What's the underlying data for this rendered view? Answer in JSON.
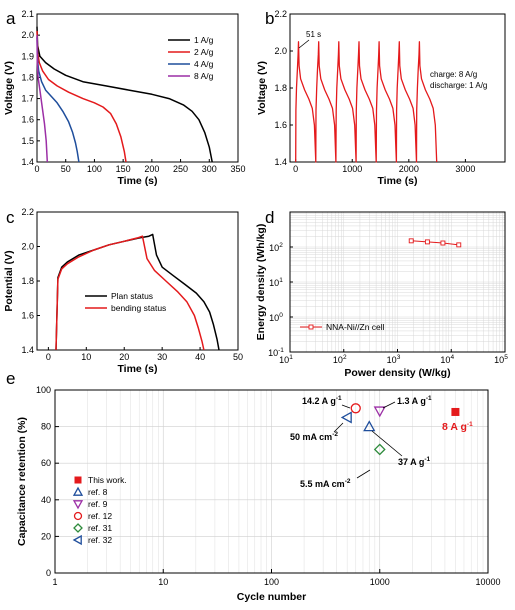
{
  "chart_data": [
    {
      "panel": "a",
      "type": "line",
      "xlabel": "Time (s)",
      "ylabel": "Voltage (V)",
      "xlim": [
        0,
        350
      ],
      "ylim": [
        1.4,
        2.1
      ],
      "xticks": [
        0,
        50,
        100,
        150,
        200,
        250,
        300,
        350
      ],
      "yticks": [
        1.4,
        1.5,
        1.6,
        1.7,
        1.8,
        1.9,
        2.0,
        2.1
      ],
      "legend_position": "top-right",
      "series": [
        {
          "name": "1 A/g",
          "color": "#000000",
          "x": [
            0,
            1,
            5,
            15,
            30,
            50,
            80,
            120,
            160,
            200,
            230,
            255,
            270,
            282,
            292,
            300,
            305
          ],
          "y": [
            2.04,
            1.95,
            1.9,
            1.87,
            1.84,
            1.81,
            1.78,
            1.76,
            1.74,
            1.72,
            1.7,
            1.67,
            1.64,
            1.6,
            1.54,
            1.47,
            1.4
          ]
        },
        {
          "name": "2 A/g",
          "color": "#e41a1c",
          "x": [
            0,
            1,
            4,
            10,
            20,
            35,
            55,
            80,
            100,
            115,
            128,
            138,
            146,
            152,
            155
          ],
          "y": [
            2.02,
            1.92,
            1.87,
            1.83,
            1.79,
            1.76,
            1.73,
            1.7,
            1.68,
            1.66,
            1.63,
            1.58,
            1.52,
            1.45,
            1.4
          ]
        },
        {
          "name": "4 A/g",
          "color": "#1f4e9c",
          "x": [
            0,
            1,
            3,
            8,
            15,
            25,
            35,
            45,
            55,
            62,
            67,
            70,
            73
          ],
          "y": [
            1.99,
            1.88,
            1.83,
            1.78,
            1.74,
            1.71,
            1.68,
            1.64,
            1.59,
            1.54,
            1.49,
            1.45,
            1.4
          ]
        },
        {
          "name": "8 A/g",
          "color": "#9c2fa6",
          "x": [
            0,
            0.5,
            2,
            5,
            9,
            13,
            16,
            18
          ],
          "y": [
            2.0,
            1.87,
            1.8,
            1.74,
            1.66,
            1.58,
            1.5,
            1.4
          ]
        }
      ]
    },
    {
      "panel": "b",
      "type": "line",
      "xlabel": "Time (s)",
      "ylabel": "Voltage (V)",
      "xlim": [
        -100,
        3700
      ],
      "ylim": [
        1.4,
        2.2
      ],
      "xticks": [
        0,
        1000,
        2000,
        3000
      ],
      "yticks": [
        1.4,
        1.6,
        1.8,
        2.0,
        2.2
      ],
      "annotations": [
        "51 s",
        "charge: 8 A/g",
        "discharge: 1 A/g"
      ],
      "cycle": {
        "count": 7,
        "charge_time_s": 51,
        "discharge_time_s": 305,
        "v_min": 1.4,
        "v_max": 2.05
      },
      "series": [
        {
          "name": "",
          "color": "#e41a1c"
        }
      ]
    },
    {
      "panel": "c",
      "type": "line",
      "xlabel": "Time (s)",
      "ylabel": "Potential (V)",
      "xlim": [
        -3,
        50
      ],
      "ylim": [
        1.4,
        2.2
      ],
      "xticks": [
        0,
        10,
        20,
        30,
        40,
        50
      ],
      "yticks": [
        1.4,
        1.6,
        1.8,
        2.0,
        2.2
      ],
      "legend_position": "center-right",
      "series": [
        {
          "name": "Plan status",
          "color": "#000000",
          "x": [
            2,
            2.5,
            3.5,
            5,
            8,
            12,
            16,
            20,
            24,
            26.5,
            27.5,
            27.6,
            28.5,
            30,
            33,
            36,
            39,
            41,
            42.5,
            43.5,
            44.5,
            45
          ],
          "y": [
            1.4,
            1.82,
            1.88,
            1.91,
            1.95,
            1.98,
            2.01,
            2.03,
            2.05,
            2.06,
            2.07,
            2.06,
            1.95,
            1.88,
            1.83,
            1.78,
            1.73,
            1.68,
            1.62,
            1.55,
            1.46,
            1.4
          ]
        },
        {
          "name": "bending status",
          "color": "#e41a1c",
          "x": [
            2,
            2.5,
            3.5,
            5,
            8,
            12,
            16,
            20,
            23.5,
            24.8,
            24.9,
            26,
            28,
            31,
            34,
            36.5,
            38.5,
            39.5,
            40.5,
            41
          ],
          "y": [
            1.4,
            1.81,
            1.87,
            1.9,
            1.94,
            1.98,
            2.01,
            2.03,
            2.05,
            2.06,
            2.05,
            1.93,
            1.86,
            1.8,
            1.74,
            1.68,
            1.6,
            1.53,
            1.45,
            1.4
          ]
        }
      ]
    },
    {
      "panel": "d",
      "type": "line",
      "scale": "log-log",
      "xlabel": "Power density (W/kg)",
      "ylabel": "Energy density (Wh/kg)",
      "xlim": [
        10,
        100000
      ],
      "ylim": [
        0.1,
        1000
      ],
      "xtick_values": [
        10,
        100,
        1000,
        10000,
        100000
      ],
      "xtick_labels": [
        "10",
        "10",
        "10",
        "10",
        "10"
      ],
      "xtick_exponents": [
        "1",
        "2",
        "3",
        "4",
        "5"
      ],
      "ytick_values": [
        0.1,
        1,
        10,
        100
      ],
      "ytick_labels": [
        "10",
        "10",
        "10",
        "10"
      ],
      "ytick_exponents": [
        "-1",
        "0",
        "1",
        "2"
      ],
      "legend_position": "bottom-left",
      "series": [
        {
          "name": "NNA-Ni//Zn cell",
          "color": "#e41a1c",
          "marker": "square-open",
          "x": [
            1800,
            3600,
            7000,
            13800
          ],
          "y": [
            150,
            140,
            130,
            115
          ]
        }
      ]
    },
    {
      "panel": "e",
      "type": "scatter",
      "scale": "log-x",
      "xlabel": "Cycle number",
      "ylabel": "Capacitance retention (%)",
      "xlim": [
        1,
        10000
      ],
      "ylim": [
        0,
        100
      ],
      "xticks": [
        1,
        10,
        100,
        1000,
        10000
      ],
      "xtick_labels": [
        "1",
        "10",
        "100",
        "1000",
        "10000"
      ],
      "yticks": [
        0,
        20,
        40,
        60,
        80,
        100
      ],
      "ytick_labels": [
        "0",
        "20",
        "40",
        "60",
        "80",
        "100"
      ],
      "legend_position": "bottom-left",
      "points": [
        {
          "name": "This work.",
          "x": 5000,
          "y": 88,
          "marker": "square-filled",
          "color": "#e41a1c"
        },
        {
          "name": "ref. 8",
          "x": 800,
          "y": 80,
          "marker": "triangle-up",
          "color": "#1f4e9c"
        },
        {
          "name": "ref. 9",
          "x": 1000,
          "y": 88.5,
          "marker": "triangle-down",
          "color": "#9c2fa6"
        },
        {
          "name": "ref. 12",
          "x": 600,
          "y": 90,
          "marker": "circle",
          "color": "#e41a1c"
        },
        {
          "name": "ref. 31",
          "x": 1000,
          "y": 67.5,
          "marker": "diamond",
          "color": "#2e8b3c"
        },
        {
          "name": "ref. 32",
          "x": 500,
          "y": 85,
          "marker": "triangle-left",
          "color": "#1f4e9c"
        }
      ],
      "annotations": [
        {
          "label": "14.2 A g",
          "sup": "-1"
        },
        {
          "label": "1.3 A g",
          "sup": "-1"
        },
        {
          "label": "50 mA cm",
          "sup": "-2"
        },
        {
          "label": "37 A g",
          "sup": "-1"
        },
        {
          "label": "5.5 mA cm",
          "sup": "-2"
        },
        {
          "label": "8 A g",
          "sup": "-1"
        }
      ]
    }
  ],
  "panel_labels": [
    "a",
    "b",
    "c",
    "d",
    "e"
  ]
}
